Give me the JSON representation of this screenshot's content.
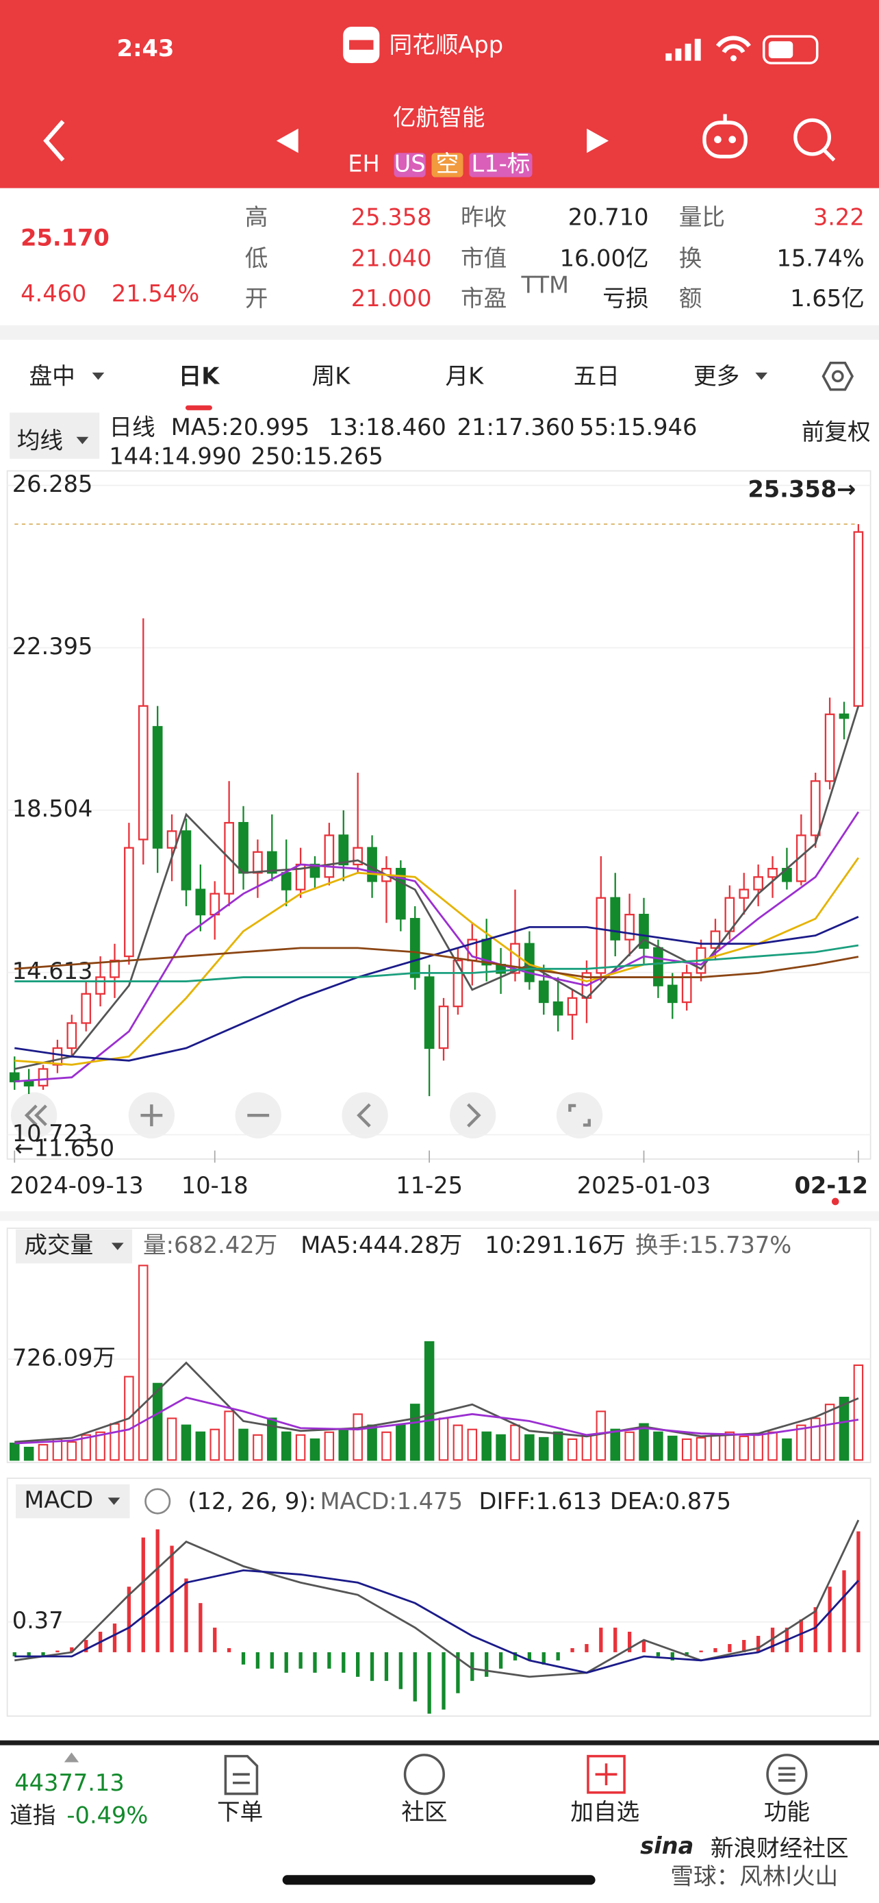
{
  "status_bar": {
    "time": "2:43",
    "app": "同花顺App"
  },
  "header": {
    "title": "亿航智能",
    "code": "EH",
    "tags": [
      "US",
      "空",
      "L1-标"
    ]
  },
  "quote": {
    "price": "25.170",
    "change": "4.460",
    "change_pct": "21.54%",
    "fields": [
      {
        "label": "高",
        "value": "25.358"
      },
      {
        "label": "低",
        "value": "21.040"
      },
      {
        "label": "开",
        "value": "21.000"
      },
      {
        "label": "昨收",
        "value": "20.710"
      },
      {
        "label": "市值",
        "value": "16.00亿"
      },
      {
        "label": "市盈",
        "sup": "TTM",
        "value": "亏损"
      },
      {
        "label": "量比",
        "value": "3.22"
      },
      {
        "label": "换",
        "value": "15.74%"
      },
      {
        "label": "额",
        "value": "1.65亿"
      }
    ]
  },
  "tabs": [
    "盘中",
    "日K",
    "周K",
    "月K",
    "五日",
    "更多"
  ],
  "chart_data": [
    {
      "type": "candlestick",
      "selector": "均线",
      "period": "日线",
      "adjust": "前复权",
      "up_color": "#e8323a",
      "down_color": "#138a2c",
      "ylim": [
        10.723,
        26.285
      ],
      "yticks": [
        26.285,
        22.395,
        18.504,
        14.613,
        10.723
      ],
      "categories": [
        "2024-09-13",
        null,
        null,
        null,
        null,
        null,
        null,
        null,
        null,
        null,
        null,
        null,
        null,
        null,
        "10-18",
        null,
        null,
        null,
        null,
        null,
        null,
        null,
        null,
        null,
        null,
        null,
        null,
        null,
        null,
        "11-25",
        null,
        null,
        null,
        null,
        null,
        null,
        null,
        null,
        null,
        null,
        null,
        null,
        null,
        null,
        "2025-01-03",
        null,
        null,
        null,
        null,
        null,
        null,
        null,
        null,
        null,
        null,
        null,
        null,
        null,
        null,
        "02-12"
      ],
      "ohlc": [
        [
          12.2,
          12.6,
          11.8,
          12.0
        ],
        [
          12.0,
          12.3,
          11.7,
          11.9
        ],
        [
          11.9,
          12.4,
          11.8,
          12.3
        ],
        [
          12.4,
          13.0,
          12.2,
          12.8
        ],
        [
          12.8,
          13.6,
          12.6,
          13.4
        ],
        [
          13.4,
          14.4,
          13.2,
          14.1
        ],
        [
          14.1,
          15.0,
          13.8,
          14.5
        ],
        [
          14.5,
          15.3,
          14.0,
          14.9
        ],
        [
          15.0,
          18.2,
          14.8,
          17.6
        ],
        [
          17.8,
          23.1,
          17.2,
          21.0
        ],
        [
          20.5,
          21.0,
          17.0,
          17.6
        ],
        [
          17.6,
          18.4,
          16.8,
          18.0
        ],
        [
          18.0,
          18.3,
          16.2,
          16.6
        ],
        [
          16.6,
          17.2,
          15.6,
          16.0
        ],
        [
          16.0,
          16.8,
          15.4,
          16.5
        ],
        [
          16.5,
          19.2,
          16.2,
          18.2
        ],
        [
          18.2,
          18.6,
          16.6,
          17.0
        ],
        [
          17.0,
          17.8,
          16.4,
          17.5
        ],
        [
          17.5,
          18.4,
          16.8,
          17.0
        ],
        [
          17.0,
          17.8,
          16.2,
          16.6
        ],
        [
          16.6,
          17.6,
          16.4,
          17.2
        ],
        [
          17.2,
          17.4,
          16.6,
          16.9
        ],
        [
          16.9,
          18.2,
          16.7,
          17.9
        ],
        [
          17.9,
          18.5,
          16.8,
          17.2
        ],
        [
          17.2,
          19.4,
          17.0,
          17.6
        ],
        [
          17.6,
          17.9,
          16.4,
          16.8
        ],
        [
          16.8,
          17.4,
          15.8,
          17.1
        ],
        [
          17.1,
          17.3,
          15.6,
          15.9
        ],
        [
          15.9,
          16.2,
          14.2,
          14.5
        ],
        [
          14.5,
          14.8,
          11.65,
          12.8
        ],
        [
          12.8,
          14.0,
          12.5,
          13.8
        ],
        [
          13.8,
          15.2,
          13.6,
          14.9
        ],
        [
          14.9,
          15.8,
          14.3,
          15.4
        ],
        [
          15.4,
          15.9,
          14.4,
          14.8
        ],
        [
          14.8,
          15.2,
          14.1,
          14.6
        ],
        [
          14.6,
          16.6,
          14.4,
          15.3
        ],
        [
          15.3,
          15.6,
          14.2,
          14.4
        ],
        [
          14.4,
          14.8,
          13.6,
          13.9
        ],
        [
          13.9,
          14.5,
          13.2,
          13.6
        ],
        [
          13.6,
          14.2,
          13.0,
          14.0
        ],
        [
          14.0,
          14.9,
          13.4,
          14.6
        ],
        [
          14.6,
          17.4,
          14.4,
          16.4
        ],
        [
          16.4,
          17.0,
          15.0,
          15.4
        ],
        [
          15.4,
          16.5,
          15.0,
          16.0
        ],
        [
          16.0,
          16.4,
          14.8,
          15.2
        ],
        [
          15.2,
          15.4,
          14.0,
          14.3
        ],
        [
          14.3,
          14.6,
          13.5,
          13.9
        ],
        [
          13.9,
          14.8,
          13.7,
          14.6
        ],
        [
          14.6,
          15.4,
          14.4,
          15.2
        ],
        [
          15.2,
          15.9,
          14.9,
          15.6
        ],
        [
          15.6,
          16.7,
          15.4,
          16.4
        ],
        [
          16.4,
          17.0,
          16.0,
          16.6
        ],
        [
          16.6,
          17.2,
          16.2,
          16.9
        ],
        [
          16.9,
          17.4,
          16.4,
          17.1
        ],
        [
          17.1,
          17.6,
          16.6,
          16.8
        ],
        [
          16.8,
          18.4,
          16.7,
          17.9
        ],
        [
          17.9,
          19.4,
          17.6,
          19.2
        ],
        [
          19.2,
          21.2,
          19.0,
          20.8
        ],
        [
          20.8,
          21.1,
          20.2,
          20.71
        ],
        [
          21.0,
          25.358,
          21.04,
          25.17
        ]
      ],
      "series": [
        {
          "name": "MA5:20.995",
          "color": "#555555",
          "x": [
            0,
            4,
            8,
            12,
            16,
            20,
            24,
            28,
            32,
            36,
            40,
            44,
            48,
            52,
            56,
            59
          ],
          "values": [
            12.3,
            12.6,
            14.3,
            18.4,
            17.0,
            17.1,
            17.3,
            16.6,
            14.2,
            14.8,
            14.0,
            15.4,
            14.7,
            16.5,
            17.7,
            21.0
          ]
        },
        {
          "name": "13:18.460",
          "color": "#9b2fd0",
          "x": [
            0,
            4,
            8,
            12,
            16,
            20,
            24,
            28,
            32,
            36,
            40,
            44,
            48,
            52,
            56,
            59
          ],
          "values": [
            12.0,
            12.1,
            13.2,
            15.5,
            16.5,
            17.2,
            17.1,
            16.8,
            15.0,
            14.6,
            14.3,
            15.0,
            14.8,
            15.9,
            16.9,
            18.46
          ]
        },
        {
          "name": "21:17.360",
          "color": "#e5b300",
          "x": [
            0,
            4,
            8,
            12,
            16,
            20,
            24,
            28,
            32,
            36,
            40,
            44,
            48,
            52,
            56,
            59
          ],
          "values": [
            12.5,
            12.4,
            12.6,
            14.0,
            15.6,
            16.5,
            17.0,
            16.9,
            15.8,
            14.8,
            14.4,
            14.8,
            14.9,
            15.3,
            15.9,
            17.36
          ]
        },
        {
          "name": "55:15.946",
          "color": "#1b1b8a",
          "x": [
            0,
            4,
            8,
            12,
            16,
            20,
            24,
            28,
            32,
            36,
            40,
            44,
            48,
            52,
            56,
            59
          ],
          "values": [
            12.8,
            12.6,
            12.5,
            12.8,
            13.4,
            14.0,
            14.5,
            14.9,
            15.3,
            15.7,
            15.7,
            15.5,
            15.3,
            15.3,
            15.5,
            15.946
          ]
        },
        {
          "name": "144:14.990",
          "color": "#8b4513",
          "x": [
            0,
            4,
            8,
            12,
            16,
            20,
            24,
            28,
            32,
            36,
            40,
            44,
            48,
            52,
            56,
            59
          ],
          "values": [
            14.7,
            14.8,
            14.9,
            15.0,
            15.1,
            15.2,
            15.2,
            15.1,
            14.9,
            14.7,
            14.5,
            14.5,
            14.5,
            14.6,
            14.8,
            14.99
          ]
        },
        {
          "name": "250:15.265",
          "color": "#1a9f7e",
          "x": [
            0,
            4,
            8,
            12,
            16,
            20,
            24,
            28,
            32,
            36,
            40,
            44,
            48,
            52,
            56,
            59
          ],
          "values": [
            14.4,
            14.4,
            14.4,
            14.4,
            14.5,
            14.5,
            14.5,
            14.6,
            14.6,
            14.7,
            14.7,
            14.8,
            14.9,
            15.0,
            15.1,
            15.265
          ]
        }
      ],
      "annotations": [
        "25.358→",
        "←11.650"
      ]
    },
    {
      "type": "bar",
      "selector": "成交量",
      "label": "量:682.42万",
      "turnover": "换手:15.737%",
      "ylim": [
        0,
        1450
      ],
      "yticks": [
        {
          "value": 726.09,
          "label": "726.09万"
        }
      ],
      "values": [
        120,
        90,
        110,
        150,
        130,
        180,
        200,
        260,
        600,
        1400,
        550,
        300,
        250,
        200,
        220,
        350,
        220,
        180,
        300,
        200,
        180,
        150,
        200,
        220,
        330,
        250,
        200,
        250,
        400,
        850,
        300,
        250,
        220,
        200,
        180,
        250,
        180,
        160,
        200,
        150,
        180,
        350,
        220,
        200,
        260,
        200,
        170,
        150,
        160,
        180,
        200,
        170,
        190,
        200,
        150,
        250,
        300,
        400,
        450,
        682.42
      ],
      "series": [
        {
          "name": "MA5:444.28万",
          "color": "#555555",
          "x": [
            0,
            4,
            8,
            12,
            16,
            20,
            24,
            28,
            32,
            36,
            40,
            44,
            48,
            52,
            56,
            59
          ],
          "values": [
            130,
            160,
            300,
            700,
            280,
            210,
            230,
            300,
            400,
            210,
            170,
            240,
            170,
            190,
            310,
            444.28
          ]
        },
        {
          "name": "10:291.16万",
          "color": "#9b2fd0",
          "x": [
            0,
            4,
            8,
            12,
            16,
            20,
            24,
            28,
            32,
            36,
            40,
            44,
            48,
            52,
            56,
            59
          ],
          "values": [
            120,
            140,
            220,
            450,
            350,
            230,
            220,
            270,
            330,
            280,
            180,
            230,
            190,
            180,
            240,
            291.16
          ]
        }
      ]
    },
    {
      "type": "macd",
      "selector": "MACD",
      "params": "(12, 26, 9):",
      "label": "MACD:1.475",
      "ylim": [
        -0.75,
        1.65
      ],
      "yticks": [
        0.37
      ],
      "values": [
        -0.05,
        -0.06,
        -0.04,
        0.02,
        0.06,
        0.15,
        0.25,
        0.35,
        0.8,
        1.4,
        1.5,
        1.3,
        0.9,
        0.6,
        0.3,
        0.05,
        -0.15,
        -0.2,
        -0.2,
        -0.25,
        -0.2,
        -0.25,
        -0.2,
        -0.25,
        -0.3,
        -0.35,
        -0.35,
        -0.45,
        -0.6,
        -0.75,
        -0.7,
        -0.5,
        -0.35,
        -0.3,
        -0.2,
        -0.1,
        -0.1,
        -0.15,
        -0.1,
        0.05,
        0.1,
        0.3,
        0.3,
        0.25,
        0.15,
        -0.05,
        -0.1,
        -0.05,
        0.02,
        0.05,
        0.1,
        0.15,
        0.2,
        0.3,
        0.3,
        0.4,
        0.55,
        0.8,
        1.0,
        1.475
      ],
      "series": [
        {
          "name": "DIFF:1.613",
          "color": "#555555",
          "x": [
            0,
            4,
            8,
            12,
            16,
            20,
            24,
            28,
            32,
            36,
            40,
            44,
            48,
            52,
            56,
            59
          ],
          "values": [
            -0.1,
            0.0,
            0.7,
            1.35,
            1.05,
            0.85,
            0.7,
            0.3,
            -0.2,
            -0.3,
            -0.25,
            0.15,
            -0.1,
            0.05,
            0.5,
            1.613
          ]
        },
        {
          "name": "DEA:0.875",
          "color": "#1b1b8a",
          "x": [
            0,
            4,
            8,
            12,
            16,
            20,
            24,
            28,
            32,
            36,
            40,
            44,
            48,
            52,
            56,
            59
          ],
          "values": [
            -0.05,
            -0.05,
            0.3,
            0.85,
            1.0,
            0.95,
            0.85,
            0.6,
            0.2,
            -0.1,
            -0.25,
            -0.05,
            -0.1,
            0.0,
            0.3,
            0.875
          ]
        }
      ]
    }
  ],
  "footer": {
    "index_value": "44377.13",
    "index_name": "道指",
    "index_change": "-0.49%",
    "nav": [
      "下单",
      "社区",
      "加自选",
      "功能"
    ]
  },
  "watermark": {
    "logo": "sina",
    "site": "新浪财经社区",
    "author": "雪球：风林l火山"
  }
}
